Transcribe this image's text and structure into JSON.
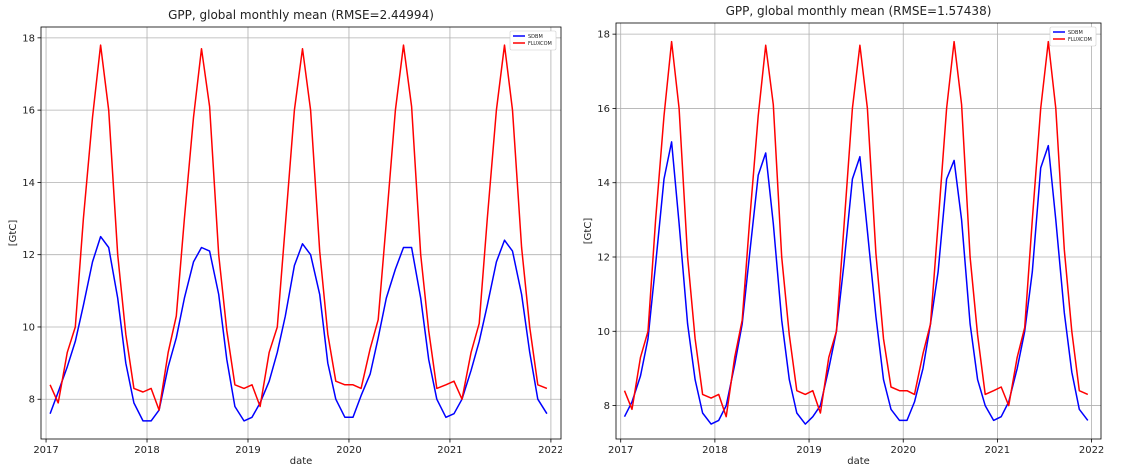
{
  "chart_data": [
    {
      "type": "line",
      "title": "GPP, global monthly mean (RMSE=2.44994)",
      "xlabel": "date",
      "ylabel": "[GtC]",
      "xlim": [
        2016.95,
        2022.1
      ],
      "ylim": [
        6.9,
        18.3
      ],
      "xticks": [
        2017,
        2018,
        2019,
        2020,
        2021,
        2022
      ],
      "yticks": [
        8,
        10,
        12,
        14,
        16,
        18
      ],
      "grid": true,
      "legend": "top-right",
      "x": [
        2017.04,
        2017.12,
        2017.21,
        2017.29,
        2017.37,
        2017.46,
        2017.54,
        2017.62,
        2017.71,
        2017.79,
        2017.87,
        2017.96,
        2018.04,
        2018.12,
        2018.21,
        2018.29,
        2018.37,
        2018.46,
        2018.54,
        2018.62,
        2018.71,
        2018.79,
        2018.87,
        2018.96,
        2019.04,
        2019.12,
        2019.21,
        2019.29,
        2019.37,
        2019.46,
        2019.54,
        2019.62,
        2019.71,
        2019.79,
        2019.87,
        2019.96,
        2020.04,
        2020.12,
        2020.21,
        2020.29,
        2020.37,
        2020.46,
        2020.54,
        2020.62,
        2020.71,
        2020.79,
        2020.87,
        2020.96,
        2021.04,
        2021.12,
        2021.21,
        2021.29,
        2021.37,
        2021.46,
        2021.54,
        2021.62,
        2021.71,
        2021.79,
        2021.87,
        2021.96
      ],
      "series": [
        {
          "name": "SDBM",
          "color": "#0000ff",
          "values": [
            7.6,
            8.2,
            8.9,
            9.6,
            10.6,
            11.8,
            12.5,
            12.2,
            10.8,
            9.0,
            7.9,
            7.4,
            7.4,
            7.7,
            8.9,
            9.7,
            10.8,
            11.8,
            12.2,
            12.1,
            10.9,
            9.1,
            7.8,
            7.4,
            7.5,
            7.9,
            8.5,
            9.3,
            10.3,
            11.7,
            12.3,
            12.0,
            10.9,
            9.0,
            8.0,
            7.5,
            7.5,
            8.1,
            8.7,
            9.7,
            10.8,
            11.6,
            12.2,
            12.2,
            10.8,
            9.1,
            8.0,
            7.5,
            7.6,
            8.0,
            8.8,
            9.6,
            10.6,
            11.8,
            12.4,
            12.1,
            10.9,
            9.3,
            8.0,
            7.6
          ]
        },
        {
          "name": "FLUXCOM",
          "color": "#ff0000",
          "values": [
            8.4,
            7.9,
            9.3,
            10.0,
            13.0,
            15.8,
            17.8,
            16.0,
            12.0,
            9.8,
            8.3,
            8.2,
            8.3,
            7.7,
            9.3,
            10.3,
            13.0,
            15.8,
            17.7,
            16.1,
            12.0,
            9.9,
            8.4,
            8.3,
            8.4,
            7.8,
            9.3,
            10.0,
            12.8,
            16.0,
            17.7,
            16.0,
            12.1,
            9.8,
            8.5,
            8.4,
            8.4,
            8.3,
            9.4,
            10.2,
            12.9,
            16.0,
            17.8,
            16.1,
            12.0,
            9.9,
            8.3,
            8.4,
            8.5,
            8.0,
            9.3,
            10.1,
            13.0,
            16.0,
            17.8,
            16.0,
            12.2,
            10.0,
            8.4,
            8.3
          ]
        }
      ]
    },
    {
      "type": "line",
      "title": "GPP, global monthly mean (RMSE=1.57438)",
      "xlabel": "date",
      "ylabel": "[GtC]",
      "xlim": [
        2016.95,
        2022.1
      ],
      "ylim": [
        7.1,
        18.3
      ],
      "xticks": [
        2017,
        2018,
        2019,
        2020,
        2021,
        2022
      ],
      "yticks": [
        8,
        10,
        12,
        14,
        16,
        18
      ],
      "grid": true,
      "legend": "top-right",
      "x": [
        2017.04,
        2017.12,
        2017.21,
        2017.29,
        2017.37,
        2017.46,
        2017.54,
        2017.62,
        2017.71,
        2017.79,
        2017.87,
        2017.96,
        2018.04,
        2018.12,
        2018.21,
        2018.29,
        2018.37,
        2018.46,
        2018.54,
        2018.62,
        2018.71,
        2018.79,
        2018.87,
        2018.96,
        2019.04,
        2019.12,
        2019.21,
        2019.29,
        2019.37,
        2019.46,
        2019.54,
        2019.62,
        2019.71,
        2019.79,
        2019.87,
        2019.96,
        2020.04,
        2020.12,
        2020.21,
        2020.29,
        2020.37,
        2020.46,
        2020.54,
        2020.62,
        2020.71,
        2020.79,
        2020.87,
        2020.96,
        2021.04,
        2021.12,
        2021.21,
        2021.29,
        2021.37,
        2021.46,
        2021.54,
        2021.62,
        2021.71,
        2021.79,
        2021.87,
        2021.96
      ],
      "series": [
        {
          "name": "SDBM",
          "color": "#0000ff",
          "values": [
            7.7,
            8.1,
            8.8,
            9.8,
            11.8,
            14.1,
            15.1,
            12.9,
            10.2,
            8.7,
            7.8,
            7.5,
            7.6,
            8.0,
            9.1,
            10.2,
            12.1,
            14.2,
            14.8,
            12.9,
            10.3,
            8.7,
            7.8,
            7.5,
            7.7,
            8.0,
            9.0,
            10.0,
            11.8,
            14.1,
            14.7,
            12.7,
            10.4,
            8.7,
            7.9,
            7.6,
            7.6,
            8.1,
            9.0,
            10.2,
            11.6,
            14.1,
            14.6,
            13.0,
            10.2,
            8.7,
            8.0,
            7.6,
            7.7,
            8.1,
            9.0,
            10.0,
            11.6,
            14.4,
            15.0,
            13.0,
            10.5,
            8.9,
            7.9,
            7.6
          ]
        },
        {
          "name": "FLUXCOM",
          "color": "#ff0000",
          "values": [
            8.4,
            7.9,
            9.3,
            10.0,
            13.0,
            15.8,
            17.8,
            16.0,
            12.0,
            9.8,
            8.3,
            8.2,
            8.3,
            7.7,
            9.3,
            10.3,
            13.0,
            15.8,
            17.7,
            16.1,
            12.0,
            9.9,
            8.4,
            8.3,
            8.4,
            7.8,
            9.3,
            10.0,
            12.8,
            16.0,
            17.7,
            16.0,
            12.1,
            9.8,
            8.5,
            8.4,
            8.4,
            8.3,
            9.4,
            10.2,
            12.9,
            16.0,
            17.8,
            16.1,
            12.0,
            9.9,
            8.3,
            8.4,
            8.5,
            8.0,
            9.3,
            10.1,
            13.0,
            16.0,
            17.8,
            16.0,
            12.2,
            10.0,
            8.4,
            8.3
          ]
        }
      ]
    }
  ]
}
